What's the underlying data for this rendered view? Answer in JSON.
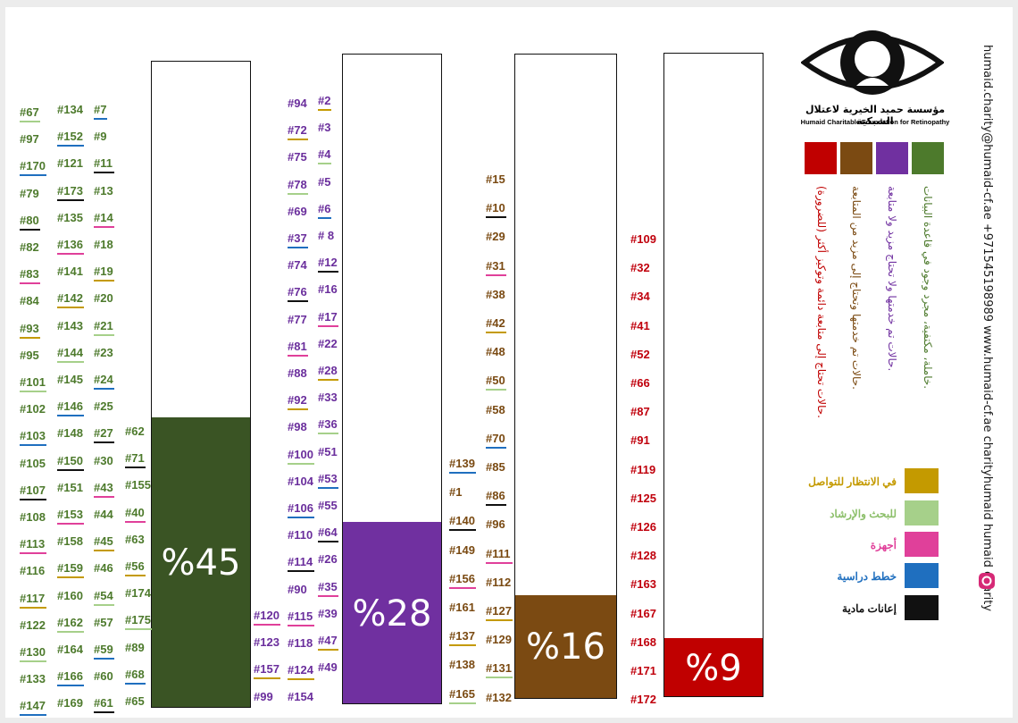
{
  "chart_data": {
    "type": "bar",
    "categories": [
      "green",
      "purple",
      "brown",
      "red"
    ],
    "values": [
      45,
      28,
      16,
      9
    ],
    "value_labels": [
      "%45",
      "%28",
      "%16",
      "%9"
    ],
    "ylim": [
      0,
      100
    ],
    "colors": [
      "#3a5424",
      "#7030a0",
      "#7b4a12",
      "#c00000"
    ],
    "case_lists": [
      {
        "color": "#4d7a2c",
        "columns": [
          [
            "#67",
            "#97",
            "#170",
            "#79",
            "#80",
            "#82",
            "#83",
            "#84",
            "#93",
            "#95",
            "#101",
            "#102",
            "#103",
            "#105",
            "#107",
            "#108",
            "#113",
            "#116",
            "#117",
            "#122",
            "#130",
            "#133",
            "#147"
          ],
          [
            "#134",
            "#152",
            "#121",
            "#173",
            "#135",
            "#136",
            "#141",
            "#142",
            "#143",
            "#144",
            "#145",
            "#146",
            "#148",
            "#150",
            "#151",
            "#153",
            "#158",
            "#159",
            "#160",
            "#162",
            "#164",
            "#166",
            "#169"
          ],
          [
            "#7",
            "#9",
            "#11",
            "#13",
            "#14",
            "#18",
            "#19",
            "#20",
            "#21",
            "#23",
            "#24",
            "#25",
            "#27",
            "#30",
            "#43",
            "#44",
            "#45",
            "#46",
            "#54",
            "#57",
            "#59",
            "#60",
            "#61"
          ],
          [
            "#62",
            "#71",
            "#155",
            "#40",
            "#63",
            "#56",
            "#174",
            "#175",
            "#89",
            "#68",
            "#65"
          ]
        ]
      },
      {
        "color": "#6a2e9c",
        "columns": [
          [
            "#120",
            "#123",
            "#157",
            "#99"
          ],
          [
            "#94",
            "#72",
            "#75",
            "#78",
            "#69",
            "#37",
            "#74",
            "#76",
            "#77",
            "#81",
            "#88",
            "#92",
            "#98",
            "#100",
            "#104",
            "#106",
            "#110",
            "#114",
            "#90",
            "#115",
            "#118",
            "#124",
            "#154"
          ],
          [
            "#2",
            "#3",
            "#4",
            "#5",
            "#6",
            "# 8",
            "#12",
            "#16",
            "#17",
            "#22",
            "#28",
            "#33",
            "#36",
            "#51",
            "#53",
            "#55",
            "#64",
            "#26",
            "#35",
            "#39",
            "#47",
            "#49"
          ]
        ]
      },
      {
        "color": "#7a4a12",
        "columns": [
          [
            "#139",
            "#1",
            "#140",
            "#149",
            "#156",
            "#161",
            "#137",
            "#138",
            "#165"
          ],
          [
            "#15",
            "#10",
            "#29",
            "#31",
            "#38",
            "#42",
            "#48",
            "#50",
            "#58",
            "#70",
            "#85",
            "#86",
            "#96",
            "#111",
            "#112",
            "#127",
            "#129",
            "#131",
            "#132"
          ]
        ]
      },
      {
        "color": "#c0000c",
        "columns": [
          [
            "#109",
            "#32",
            "#34",
            "#41",
            "#52",
            "#66",
            "#87",
            "#91",
            "#119",
            "#125",
            "#126",
            "#128",
            "#163",
            "#167",
            "#168",
            "#171",
            "#172"
          ]
        ]
      }
    ],
    "legend": [
      {
        "color": "#c00000",
        "label": "حالات تحتاج إلى متابعة دائمة وتوكيز أكثر (للضرورة)."
      },
      {
        "color": "#7b4a12",
        "label": "حالات تم خدمتها وتحتاج إلى مزيد من المتابعة."
      },
      {
        "color": "#7030a0",
        "label": "حالات تم خدمتها ولا تحتاج مزيد ولا متابعة."
      },
      {
        "color": "#4d7a2c",
        "label": "خاملة، مكتفية، مجرد وجود في قاعدة البيانات."
      }
    ],
    "underline_legend": [
      {
        "color": "#c49a00",
        "label": "في الانتظار للتواصل"
      },
      {
        "color": "#a6d08a",
        "label": "للبحث والإرشاد"
      },
      {
        "color": "#e0409a",
        "label": "أجهزة"
      },
      {
        "color": "#1f6fbf",
        "label": "خطط دراسية"
      },
      {
        "color": "#111111",
        "label": "إعانات مادية"
      }
    ]
  },
  "org": {
    "name_ar": "مؤسسة حميد الخيرية لاعتلال الشبكية",
    "name_en": "Humaid Charitable Foundation for Retinopathy"
  },
  "contact": {
    "line": "humaid.charity@humaid-cf.ae  +971545198989  www.humaid-cf.ae  charityhumaid  humaid charity"
  }
}
